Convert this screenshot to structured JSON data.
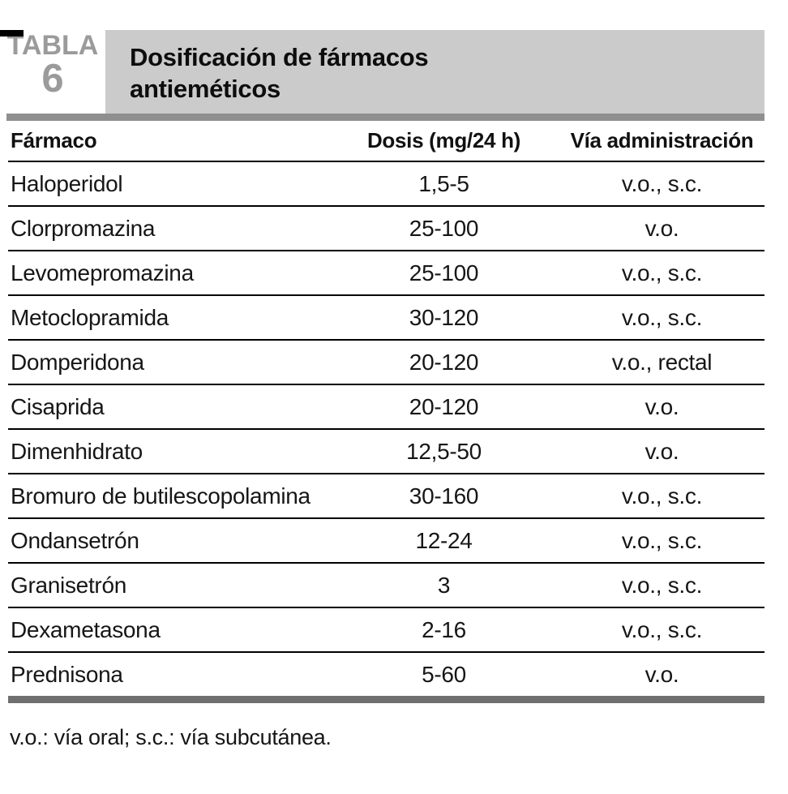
{
  "header": {
    "table_label": "TABLA",
    "table_number": "6",
    "title_line1": "Dosificación de fármacos",
    "title_line2": "antieméticos"
  },
  "table": {
    "columns": [
      "Fármaco",
      "Dosis (mg/24 h)",
      "Vía administración"
    ],
    "rows": [
      {
        "farmaco": "Haloperidol",
        "dosis": "1,5-5",
        "via": "v.o., s.c."
      },
      {
        "farmaco": "Clorpromazina",
        "dosis": "25-100",
        "via": "v.o."
      },
      {
        "farmaco": "Levomepromazina",
        "dosis": "25-100",
        "via": "v.o., s.c."
      },
      {
        "farmaco": "Metoclopramida",
        "dosis": "30-120",
        "via": "v.o., s.c."
      },
      {
        "farmaco": "Domperidona",
        "dosis": "20-120",
        "via": "v.o., rectal"
      },
      {
        "farmaco": "Cisaprida",
        "dosis": "20-120",
        "via": "v.o."
      },
      {
        "farmaco": "Dimenhidrato",
        "dosis": "12,5-50",
        "via": "v.o."
      },
      {
        "farmaco": "Bromuro de butilescopolamina",
        "dosis": "30-160",
        "via": "v.o., s.c."
      },
      {
        "farmaco": "Ondansetrón",
        "dosis": "12-24",
        "via": "v.o., s.c."
      },
      {
        "farmaco": "Granisetrón",
        "dosis": "3",
        "via": "v.o., s.c."
      },
      {
        "farmaco": "Dexametasona",
        "dosis": "2-16",
        "via": "v.o., s.c."
      },
      {
        "farmaco": "Prednisona",
        "dosis": "5-60",
        "via": "v.o."
      }
    ]
  },
  "footnote": "v.o.: vía oral; s.c.: vía subcutánea.",
  "colors": {
    "title_bar_bg": "#cbcbcb",
    "label_gray": "#9b9b9b",
    "rule_top_gray": "#8f8f8f",
    "rule_bottom_gray": "#6f6f6f",
    "text_black": "#111111"
  }
}
